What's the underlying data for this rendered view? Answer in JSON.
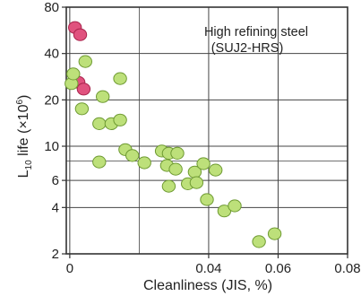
{
  "chart_data": {
    "type": "scatter",
    "x_scale": "linear",
    "y_scale": "log",
    "xlim": [
      -0.001,
      0.08
    ],
    "ylim": [
      2,
      80
    ],
    "x_ticks": [
      0,
      0.04,
      0.06,
      0.08
    ],
    "x_tick_labels": [
      "0",
      "0.04",
      "0.06",
      "0.08"
    ],
    "y_ticks": [
      2,
      4,
      6,
      10,
      20,
      40,
      80
    ],
    "y_tick_labels": [
      "2",
      "4",
      "6",
      "10",
      "20",
      "40",
      "80"
    ],
    "grid": true,
    "xlabel": "Cleanliness (JIS, %)",
    "ylabel": "L10 life (×10⁶)",
    "ylabel_main": "L",
    "ylabel_sub": "10",
    "ylabel_rest": " life (×10",
    "ylabel_sup": "6",
    "ylabel_close": ")",
    "annotation_line1": "High refining steel",
    "annotation_line2": "(SUJ2-HRS)",
    "colors": {
      "pink_fill": "#e0527e",
      "pink_edge": "#a8244c",
      "green_fill": "#bde07a",
      "green_edge": "#6e9a32",
      "axis": "#333333",
      "grid": "#444444"
    },
    "series": [
      {
        "color": "pink",
        "points": [
          [
            0.0015,
            59
          ],
          [
            0.003,
            53
          ],
          [
            0.0025,
            26
          ],
          [
            0.004,
            23.5
          ]
        ]
      },
      {
        "color": "green",
        "points": [
          [
            0.0005,
            25.5
          ],
          [
            0.001,
            29.5
          ],
          [
            0.0045,
            35.5
          ],
          [
            0.0035,
            17.5
          ],
          [
            0.0095,
            21
          ],
          [
            0.0145,
            27.5
          ],
          [
            0.0085,
            14
          ],
          [
            0.012,
            14
          ],
          [
            0.0145,
            14.8
          ],
          [
            0.016,
            9.5
          ],
          [
            0.018,
            8.7
          ],
          [
            0.0215,
            7.8
          ],
          [
            0.0085,
            7.9
          ],
          [
            0.0265,
            9.3
          ],
          [
            0.0285,
            9
          ],
          [
            0.031,
            9
          ],
          [
            0.028,
            7.5
          ],
          [
            0.0305,
            7.1
          ],
          [
            0.0285,
            5.5
          ],
          [
            0.034,
            5.7
          ],
          [
            0.036,
            6.8
          ],
          [
            0.0365,
            5.8
          ],
          [
            0.0385,
            7.7
          ],
          [
            0.042,
            7
          ],
          [
            0.0395,
            4.5
          ],
          [
            0.0445,
            3.8
          ],
          [
            0.0475,
            4.1
          ],
          [
            0.0545,
            2.4
          ],
          [
            0.059,
            2.7
          ]
        ]
      }
    ]
  }
}
